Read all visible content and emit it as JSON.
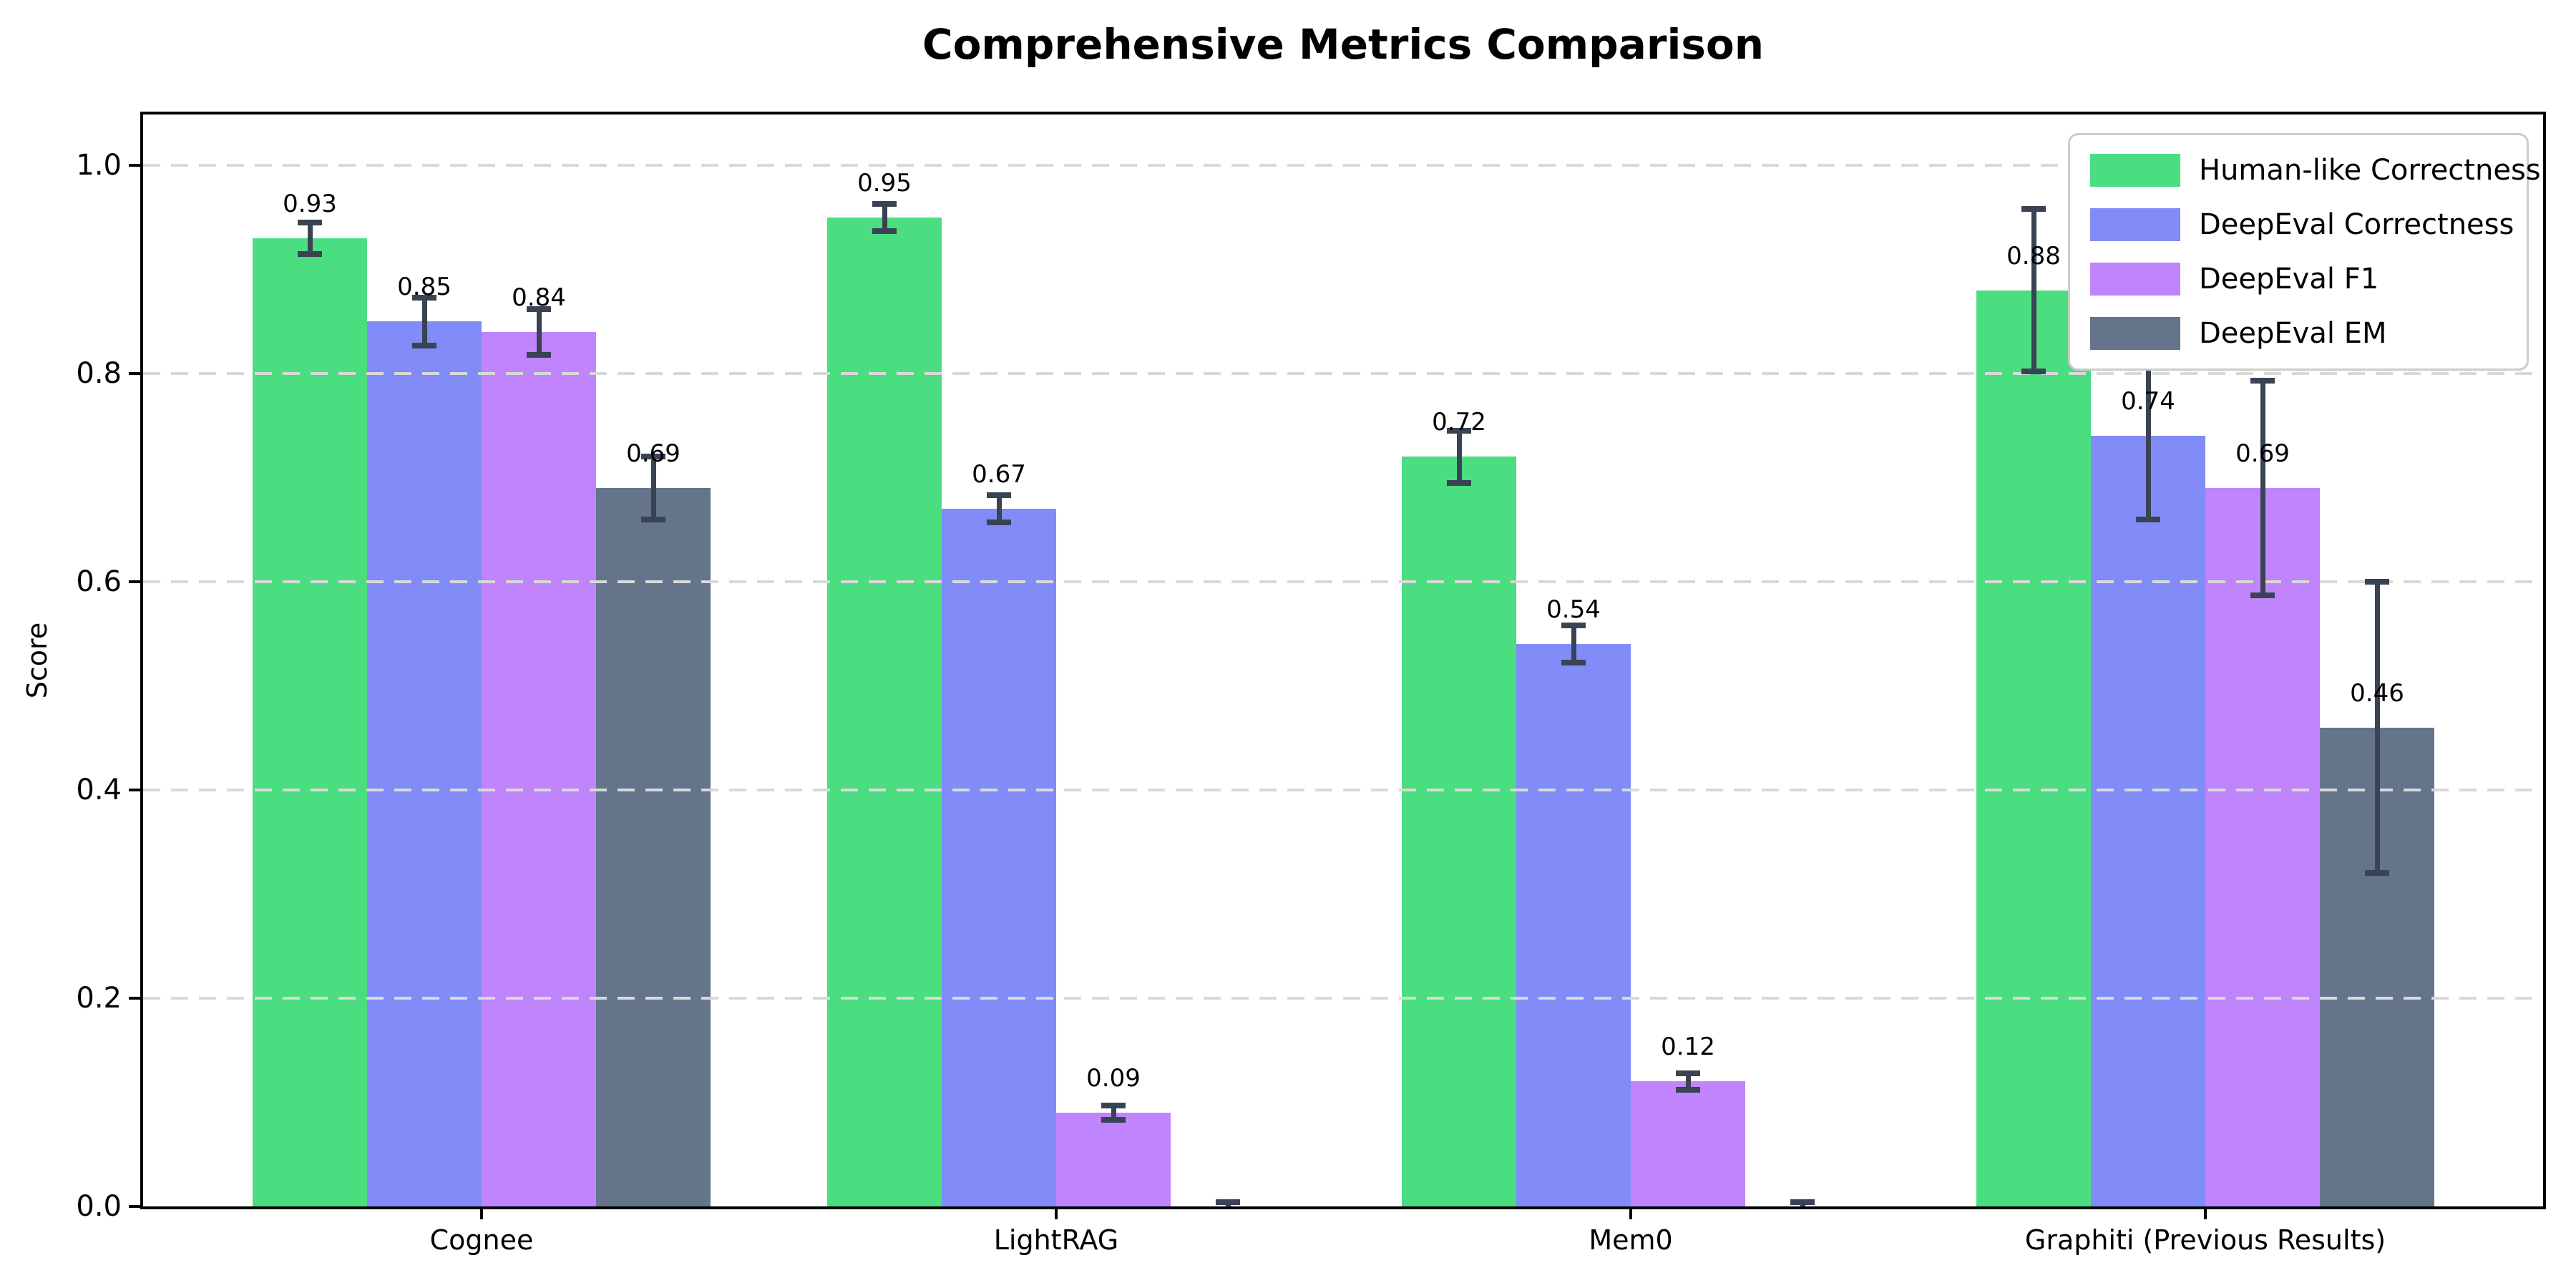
{
  "chart_data": {
    "type": "bar",
    "title": "Comprehensive Metrics Comparison",
    "xlabel": "",
    "ylabel": "Score",
    "categories": [
      "Cognee",
      "LightRAG",
      "Mem0",
      "Graphiti (Previous Results)"
    ],
    "series": [
      {
        "name": "Human-like Correctness",
        "color": "#4ade80",
        "values": [
          0.93,
          0.95,
          0.72,
          0.88
        ],
        "errors": [
          0.015,
          0.013,
          0.025,
          0.078
        ],
        "labels": [
          "0.93",
          "0.95",
          "0.72",
          "0.88"
        ]
      },
      {
        "name": "DeepEval Correctness",
        "color": "#818cf8",
        "values": [
          0.85,
          0.67,
          0.54,
          0.74
        ],
        "errors": [
          0.023,
          0.013,
          0.018,
          0.08
        ],
        "labels": [
          "0.85",
          "0.67",
          "0.54",
          "0.74"
        ]
      },
      {
        "name": "DeepEval F1",
        "color": "#c084fc",
        "values": [
          0.84,
          0.09,
          0.12,
          0.69
        ],
        "errors": [
          0.022,
          0.007,
          0.008,
          0.103
        ],
        "labels": [
          "0.84",
          "0.09",
          "0.12",
          "0.69"
        ]
      },
      {
        "name": "DeepEval EM",
        "color": "#64748b",
        "values": [
          0.69,
          0.0,
          0.0,
          0.46
        ],
        "errors": [
          0.03,
          0.004,
          0.004,
          0.14
        ],
        "labels": [
          "0.69",
          "",
          "",
          "0.46"
        ]
      }
    ],
    "yticks": [
      {
        "value": 0.0,
        "label": "0.0"
      },
      {
        "value": 0.2,
        "label": "0.2"
      },
      {
        "value": 0.4,
        "label": "0.4"
      },
      {
        "value": 0.6,
        "label": "0.6"
      },
      {
        "value": 0.8,
        "label": "0.8"
      },
      {
        "value": 1.0,
        "label": "1.0"
      }
    ],
    "ylim": [
      0,
      1.05
    ],
    "grid": "horizontal-dashed",
    "legend_position": "upper-right",
    "error_bar_color": "#3a4354"
  }
}
